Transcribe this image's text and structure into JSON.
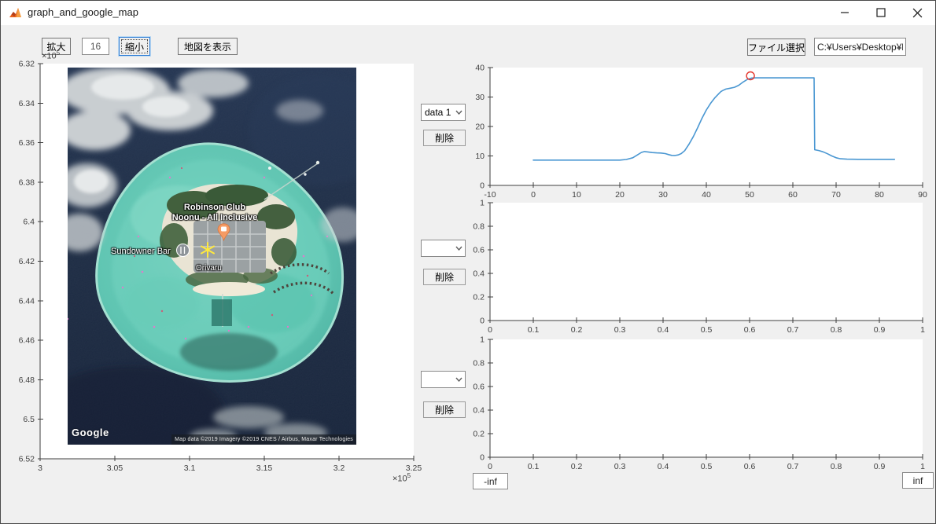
{
  "window": {
    "title": "graph_and_google_map",
    "controls": {
      "minimize": "minimize",
      "maximize": "maximize",
      "close": "close"
    }
  },
  "toolbar": {
    "zoom_in_label": "拡大",
    "zoom_value": "16",
    "zoom_out_label": "縮小",
    "show_map_label": "地図を表示",
    "file_select_label": "ファイル選択",
    "file_path_value": "C:¥Users¥Desktop¥kii"
  },
  "datasets": {
    "delete_label": "削除",
    "dropdowns": [
      {
        "value": "data 1"
      },
      {
        "value": ""
      },
      {
        "value": ""
      }
    ]
  },
  "bounds": {
    "lower": "-inf",
    "upper": "inf"
  },
  "map_panel": {
    "axes": {
      "xlim": [
        3,
        3.25
      ],
      "ylim": [
        6.32,
        6.52
      ],
      "ydir": "down",
      "xticks": {
        "values": [
          3,
          3.05,
          3.1,
          3.15,
          3.2,
          3.25
        ],
        "labels": [
          "3",
          "3.05",
          "3.1",
          "3.15",
          "3.2",
          "3.25"
        ]
      },
      "yticks": {
        "values": [
          6.32,
          6.34,
          6.36,
          6.38,
          6.4,
          6.42,
          6.44,
          6.46,
          6.48,
          6.5,
          6.52
        ],
        "labels": [
          "6.32",
          "6.34",
          "6.36",
          "6.38",
          "6.4",
          "6.42",
          "6.44",
          "6.46",
          "6.48",
          "6.5",
          "6.52"
        ]
      },
      "x_exponent_base": "×10",
      "x_exponent_power": "5",
      "y_exponent_base": "×10",
      "y_exponent_power": "5"
    },
    "place_labels": {
      "resort_line1": "Robinson Club",
      "resort_line2": "Noonu - All Inclusive",
      "bar": "Sundowner Bar",
      "island": "Orivaru"
    },
    "google_logo": "Google",
    "attribution": "Map data ©2019   Imagery ©2019 CNES / Airbus, Maxar Technologies"
  },
  "chart_data": [
    {
      "type": "line",
      "title": "",
      "xlabel": "",
      "ylabel": "",
      "xlim": [
        -10,
        90
      ],
      "ylim": [
        0,
        40
      ],
      "grid": false,
      "xticks": {
        "values": [
          -10,
          0,
          10,
          20,
          30,
          40,
          50,
          60,
          70,
          80,
          90
        ],
        "labels": [
          "-10",
          "0",
          "10",
          "20",
          "30",
          "40",
          "50",
          "60",
          "70",
          "80",
          "90"
        ]
      },
      "yticks": {
        "values": [
          0,
          10,
          20,
          30,
          40
        ],
        "labels": [
          "0",
          "10",
          "20",
          "30",
          "40"
        ]
      },
      "series": [
        {
          "name": "data 1",
          "color": "#4a97d2",
          "x": [
            0,
            5,
            10,
            15,
            20,
            21.5,
            23,
            24,
            25,
            25.7,
            26.5,
            27.5,
            28.5,
            29.5,
            30.5,
            31.3,
            32,
            32.8,
            33.5,
            34.2,
            35,
            36,
            37,
            38,
            39,
            40,
            41,
            42,
            43,
            43.4,
            43.8,
            44.5,
            45.5,
            46.5,
            47.5,
            48.5,
            49.5,
            50.5,
            51.5,
            53,
            56,
            60,
            64.9,
            65.05,
            66,
            67,
            68,
            69,
            70,
            71,
            72.5,
            75,
            79,
            83.5
          ],
          "y": [
            8.6,
            8.6,
            8.6,
            8.6,
            8.6,
            8.8,
            9.4,
            10.3,
            11.2,
            11.5,
            11.35,
            11.15,
            11.05,
            11.0,
            10.8,
            10.45,
            10.2,
            10.15,
            10.35,
            10.8,
            11.8,
            14.0,
            16.6,
            19.6,
            22.8,
            25.6,
            27.9,
            29.8,
            31.3,
            31.9,
            32.2,
            32.7,
            33.0,
            33.3,
            34.0,
            35.1,
            36.0,
            36.45,
            36.5,
            36.5,
            36.5,
            36.5,
            36.5,
            12.1,
            11.85,
            11.4,
            10.75,
            10.0,
            9.4,
            9.05,
            8.9,
            8.85,
            8.85,
            8.85
          ]
        }
      ],
      "marker": {
        "shape": "circle",
        "x": 50.2,
        "y": 37.2,
        "color": "#e5342a"
      }
    },
    {
      "type": "line",
      "title": "",
      "xlabel": "",
      "ylabel": "",
      "xlim": [
        0,
        1
      ],
      "ylim": [
        0,
        1
      ],
      "grid": false,
      "xticks": {
        "values": [
          0,
          0.1,
          0.2,
          0.3,
          0.4,
          0.5,
          0.6,
          0.7,
          0.8,
          0.9,
          1
        ],
        "labels": [
          "0",
          "0.1",
          "0.2",
          "0.3",
          "0.4",
          "0.5",
          "0.6",
          "0.7",
          "0.8",
          "0.9",
          "1"
        ]
      },
      "yticks": {
        "values": [
          0,
          0.2,
          0.4,
          0.6,
          0.8,
          1
        ],
        "labels": [
          "0",
          "0.2",
          "0.4",
          "0.6",
          "0.8",
          "1"
        ]
      },
      "series": []
    },
    {
      "type": "line",
      "title": "",
      "xlabel": "",
      "ylabel": "",
      "xlim": [
        0,
        1
      ],
      "ylim": [
        0,
        1
      ],
      "grid": false,
      "xticks": {
        "values": [
          0,
          0.1,
          0.2,
          0.3,
          0.4,
          0.5,
          0.6,
          0.7,
          0.8,
          0.9,
          1
        ],
        "labels": [
          "0",
          "0.1",
          "0.2",
          "0.3",
          "0.4",
          "0.5",
          "0.6",
          "0.7",
          "0.8",
          "0.9",
          "1"
        ]
      },
      "yticks": {
        "values": [
          0,
          0.2,
          0.4,
          0.6,
          0.8,
          1
        ],
        "labels": [
          "0",
          "0.2",
          "0.4",
          "0.6",
          "0.8",
          "1"
        ]
      },
      "series": []
    }
  ]
}
